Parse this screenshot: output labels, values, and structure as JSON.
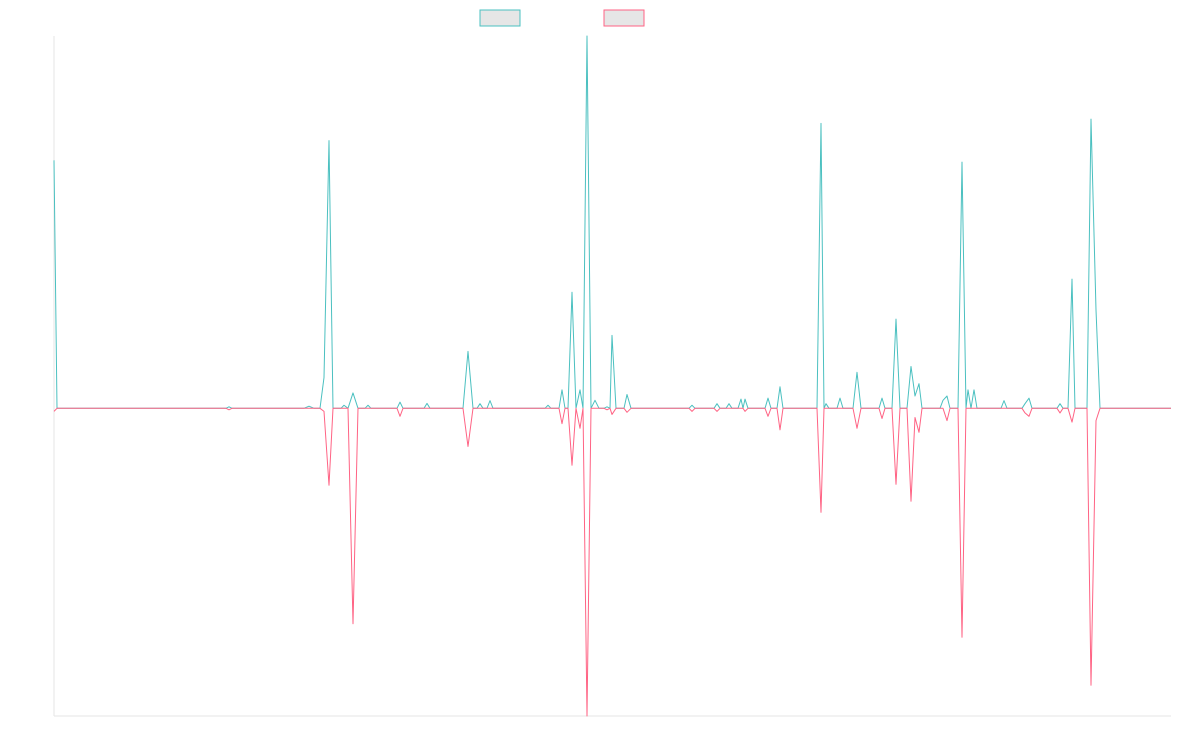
{
  "chart_data": {
    "type": "line",
    "x": [
      0,
      3,
      172,
      175,
      178,
      250,
      255,
      260,
      266,
      270,
      275,
      279,
      287,
      290,
      294,
      299,
      304,
      311,
      314,
      317,
      343,
      346,
      349,
      370,
      373,
      376,
      409,
      414,
      419,
      423,
      426,
      429,
      433,
      436,
      439,
      491,
      494,
      497,
      505,
      508,
      511,
      514,
      518,
      522,
      526,
      529,
      533,
      537,
      541,
      545,
      550,
      553,
      556,
      558,
      562,
      570,
      573,
      577,
      635,
      638,
      641,
      660,
      663,
      666,
      672,
      675,
      678,
      684,
      687,
      689,
      691,
      694,
      711,
      714,
      717,
      723,
      726,
      729,
      763,
      767,
      770,
      772,
      775,
      783,
      786,
      789,
      799,
      803,
      807,
      825,
      828,
      831,
      838,
      842,
      846,
      853,
      857,
      861,
      865,
      868,
      886,
      889,
      893,
      896,
      904,
      908,
      912,
      914,
      917,
      920,
      923,
      947,
      950,
      953,
      968,
      971,
      975,
      978,
      1003,
      1006,
      1009,
      1014,
      1018,
      1021,
      1033,
      1037,
      1042,
      1046,
      1117
    ],
    "series": [
      {
        "color": "#4bc0c0",
        "values": [
          80.6,
          0,
          0,
          0.5,
          0,
          0,
          0.7,
          0,
          0,
          10,
          87,
          0,
          0,
          1,
          0,
          5,
          0,
          0,
          1,
          0,
          0,
          2,
          0,
          0,
          1.6,
          0,
          0,
          18.5,
          0,
          0,
          1.5,
          0,
          0,
          2.5,
          0,
          0,
          1,
          0,
          0,
          6,
          0,
          0,
          37.7,
          0,
          6,
          0,
          121,
          0,
          2.6,
          0,
          0,
          0.5,
          0,
          23.7,
          0,
          0,
          4.5,
          0,
          0,
          1,
          0,
          0,
          1.5,
          0,
          0,
          1.5,
          0,
          0,
          3,
          0,
          3,
          0,
          0,
          3.3,
          0,
          0,
          7,
          0,
          0,
          92.6,
          0,
          1.5,
          0,
          0,
          3.3,
          0,
          0,
          11.7,
          0,
          0,
          3.3,
          0,
          0,
          29,
          0,
          0,
          13.6,
          4,
          8,
          0,
          0,
          2.6,
          4,
          0,
          0,
          80,
          0,
          6,
          0,
          6,
          0,
          0,
          2.5,
          0,
          0,
          1.5,
          3.3,
          0,
          0,
          1.5,
          0,
          0,
          42,
          0,
          0,
          94,
          32,
          0,
          0
        ]
      },
      {
        "color": "#ff6384",
        "values": [
          -1,
          0,
          0,
          -0.5,
          0,
          0,
          0,
          0,
          0,
          -1,
          -25,
          0,
          0,
          0,
          0,
          -70,
          0,
          0,
          0,
          0,
          0,
          -2.6,
          0,
          0,
          0,
          0,
          0,
          -12.4,
          0,
          0,
          0,
          0,
          0,
          0,
          0,
          0,
          0,
          0,
          0,
          -5,
          0,
          0,
          -18.5,
          0,
          -6.5,
          0,
          -100,
          0,
          0,
          0,
          0,
          -0.5,
          0,
          -2,
          0,
          0,
          -1.3,
          0,
          0,
          -1,
          0,
          0,
          -1,
          0,
          0,
          0,
          0,
          0,
          0,
          0,
          -1,
          0,
          0,
          -2.6,
          0,
          0,
          -7,
          0,
          0,
          -33.8,
          0,
          0,
          0,
          0,
          0,
          0,
          0,
          -6.5,
          0,
          0,
          -3.3,
          0,
          0,
          -24.7,
          0,
          0,
          -30.2,
          -3,
          -7.8,
          0,
          0,
          0,
          -4,
          0,
          0,
          -74.4,
          0,
          0,
          0,
          0,
          0,
          0,
          0,
          0,
          0,
          -1.5,
          -2.6,
          0,
          0,
          -1.5,
          0,
          0,
          -4.5,
          0,
          0,
          -90,
          -4,
          0,
          0
        ]
      }
    ],
    "xlim": [
      0,
      1117
    ],
    "ylim": [
      -100,
      121
    ]
  }
}
